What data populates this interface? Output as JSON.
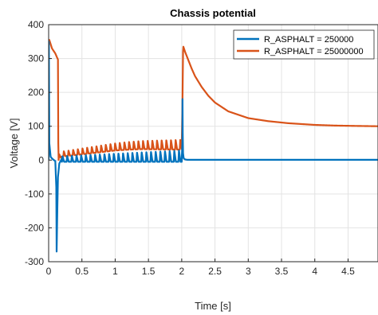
{
  "chart_data": {
    "type": "line",
    "title": "Chassis potential",
    "xlabel": "Time [s]",
    "ylabel": "Voltage [V]",
    "xlim": [
      0,
      4.95
    ],
    "ylim": [
      -300,
      400
    ],
    "xticks": [
      0,
      0.5,
      1,
      1.5,
      2,
      2.5,
      3,
      3.5,
      4,
      4.5
    ],
    "xtick_labels": [
      "0",
      "0.5",
      "1",
      "1.5",
      "2",
      "2.5",
      "3",
      "3.5",
      "4",
      "4.5"
    ],
    "yticks": [
      -300,
      -200,
      -100,
      0,
      100,
      200,
      300,
      400
    ],
    "ytick_labels": [
      "-300",
      "-200",
      "-100",
      "0",
      "100",
      "200",
      "300",
      "400"
    ],
    "grid": true,
    "legend_position": "top-right",
    "series": [
      {
        "name": "R_ASPHALT = 250000",
        "color": "#0072bd",
        "x": [
          0,
          0.003,
          0.01,
          0.03,
          0.05,
          0.08,
          0.1,
          0.115,
          0.12,
          0.13,
          0.14,
          0.16,
          0.2,
          0.25,
          0.3,
          0.35,
          0.4,
          0.5,
          0.6,
          0.7,
          0.8,
          0.9,
          1.0,
          1.2,
          1.4,
          1.6,
          1.8,
          2.0,
          2.01,
          2.012,
          2.015,
          2.02,
          2.03,
          2.05,
          2.08,
          2.1,
          2.2,
          2.5,
          3,
          3.5,
          4,
          4.5,
          4.95
        ],
        "y": [
          0,
          350,
          50,
          10,
          5,
          0,
          -3,
          -80,
          -270,
          -150,
          -50,
          -10,
          5,
          2,
          0,
          1,
          0,
          0,
          0,
          0,
          0,
          0,
          0,
          0,
          0,
          0,
          0,
          0,
          50,
          180,
          80,
          20,
          5,
          2,
          1,
          1,
          1,
          1,
          1,
          1,
          1,
          1,
          1
        ],
        "oscillation": {
          "t_start": 0.2,
          "t_end": 2.0,
          "period": 0.07,
          "amplitude_start": 12,
          "amplitude_end": 30,
          "min": -5
        }
      },
      {
        "name": "R_ASPHALT = 25000000",
        "color": "#d95319",
        "x": [
          0,
          0.01,
          0.05,
          0.1,
          0.14,
          0.145,
          0.15,
          0.17,
          0.2,
          0.4,
          0.6,
          0.8,
          1.0,
          1.2,
          1.4,
          1.6,
          1.8,
          2.0,
          2.01,
          2.02,
          2.025,
          2.05,
          2.1,
          2.15,
          2.2,
          2.3,
          2.4,
          2.5,
          2.7,
          3.0,
          3.3,
          3.6,
          4.0,
          4.3,
          4.6,
          4.95
        ],
        "y": [
          350,
          355,
          330,
          315,
          297,
          50,
          5,
          10,
          15,
          20,
          25,
          30,
          35,
          38,
          40,
          40,
          40,
          40,
          150,
          320,
          335,
          320,
          295,
          270,
          248,
          216,
          190,
          170,
          144,
          124,
          115,
          109,
          104,
          102,
          101,
          100
        ],
        "oscillation": {
          "t_start": 0.15,
          "t_end": 2.0,
          "period": 0.07,
          "amplitude_start": 15,
          "amplitude_end": 30
        }
      }
    ]
  }
}
